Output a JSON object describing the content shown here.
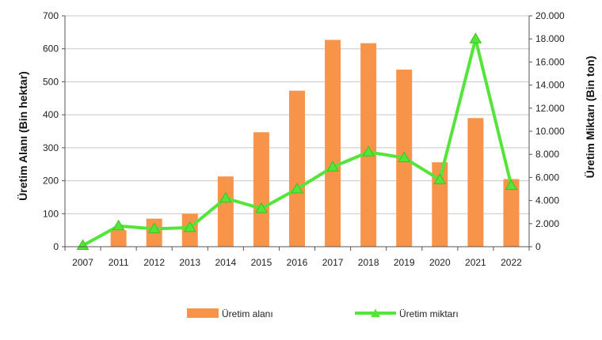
{
  "chart_data": {
    "type": "bar+line",
    "categories": [
      "2007",
      "2011",
      "2012",
      "2013",
      "2014",
      "2015",
      "2016",
      "2017",
      "2018",
      "2019",
      "2020",
      "2021",
      "2022"
    ],
    "series": [
      {
        "name": "Üretim alanı",
        "type": "bar",
        "axis": "left",
        "color": "#f7944a",
        "values": [
          0,
          50,
          85,
          100,
          213,
          347,
          473,
          627,
          617,
          537,
          256,
          390,
          205
        ]
      },
      {
        "name": "Üretim miktarı",
        "type": "line",
        "axis": "right",
        "color": "#55e53a",
        "values": [
          100,
          1800,
          1550,
          1650,
          4200,
          3300,
          5000,
          6900,
          8200,
          7700,
          5800,
          18000,
          5300
        ]
      }
    ],
    "ylabel_left": "Üretim Alanı (Bin hektar)",
    "ylabel_right": "Üretim Miktarı (Bin ton)",
    "ylim_left": [
      0,
      700
    ],
    "ylim_right": [
      0,
      20000
    ],
    "yticks_left": [
      "0",
      "100",
      "200",
      "300",
      "400",
      "500",
      "600",
      "700"
    ],
    "yticks_right": [
      "0",
      "2.000",
      "4.000",
      "6.000",
      "8.000",
      "10.000",
      "12.000",
      "14.000",
      "16.000",
      "18.000",
      "20.000"
    ],
    "grid": true,
    "legend_position": "bottom"
  }
}
